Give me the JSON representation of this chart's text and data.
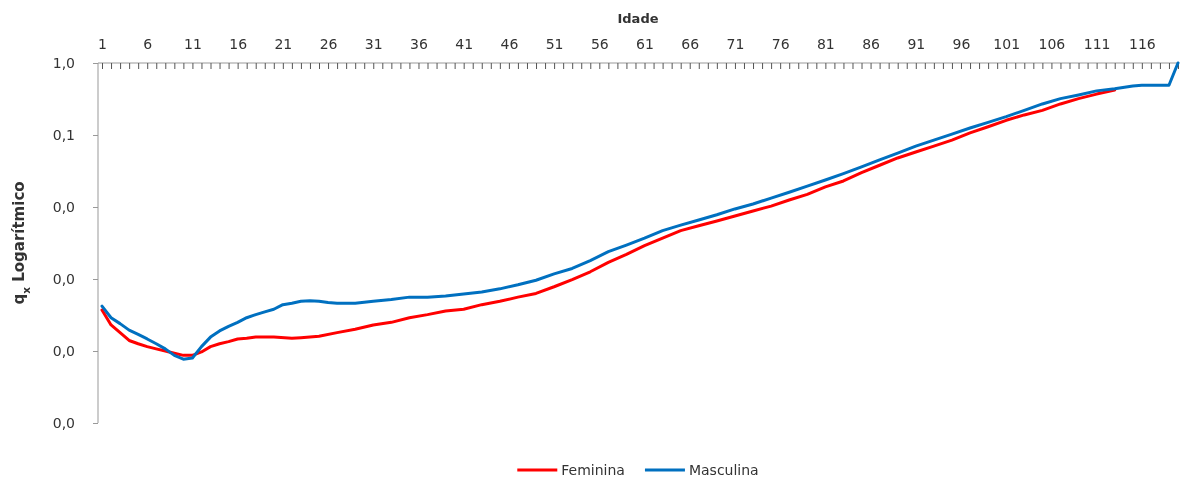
{
  "chart_data": {
    "type": "line",
    "xlabel": "Idade",
    "ylabel": "q$_{x}$ Logarítmico",
    "log": "y",
    "grid": false,
    "legend": "bottom",
    "marker": "none",
    "line_style": "solid",
    "xlim": [
      1,
      120
    ],
    "xticks": [
      1,
      {
        "value": 2,
        "label": null
      },
      {
        "value": 3,
        "label": null
      },
      {
        "value": 4,
        "label": null
      },
      {
        "value": 5,
        "label": null
      },
      6,
      {
        "value": 7,
        "label": null
      },
      {
        "value": 8,
        "label": null
      },
      {
        "value": 9,
        "label": null
      },
      {
        "value": 10,
        "label": null
      },
      11,
      {
        "value": 12,
        "label": null
      },
      {
        "value": 13,
        "label": null
      },
      {
        "value": 14,
        "label": null
      },
      {
        "value": 15,
        "label": null
      },
      16,
      {
        "value": 17,
        "label": null
      },
      {
        "value": 18,
        "label": null
      },
      {
        "value": 19,
        "label": null
      },
      {
        "value": 20,
        "label": null
      },
      21,
      {
        "value": 22,
        "label": null
      },
      {
        "value": 23,
        "label": null
      },
      {
        "value": 24,
        "label": null
      },
      {
        "value": 25,
        "label": null
      },
      26,
      {
        "value": 27,
        "label": null
      },
      {
        "value": 28,
        "label": null
      },
      {
        "value": 29,
        "label": null
      },
      {
        "value": 30,
        "label": null
      },
      31,
      {
        "value": 32,
        "label": null
      },
      {
        "value": 33,
        "label": null
      },
      {
        "value": 34,
        "label": null
      },
      {
        "value": 35,
        "label": null
      },
      36,
      {
        "value": 37,
        "label": null
      },
      {
        "value": 38,
        "label": null
      },
      {
        "value": 39,
        "label": null
      },
      {
        "value": 40,
        "label": null
      },
      41,
      {
        "value": 42,
        "label": null
      },
      {
        "value": 43,
        "label": null
      },
      {
        "value": 44,
        "label": null
      },
      {
        "value": 45,
        "label": null
      },
      46,
      {
        "value": 47,
        "label": null
      },
      {
        "value": 48,
        "label": null
      },
      {
        "value": 49,
        "label": null
      },
      {
        "value": 50,
        "label": null
      },
      51,
      {
        "value": 52,
        "label": null
      },
      {
        "value": 53,
        "label": null
      },
      {
        "value": 54,
        "label": null
      },
      {
        "value": 55,
        "label": null
      },
      56,
      {
        "value": 57,
        "label": null
      },
      {
        "value": 58,
        "label": null
      },
      {
        "value": 59,
        "label": null
      },
      {
        "value": 60,
        "label": null
      },
      61,
      {
        "value": 62,
        "label": null
      },
      {
        "value": 63,
        "label": null
      },
      {
        "value": 64,
        "label": null
      },
      {
        "value": 65,
        "label": null
      },
      66,
      {
        "value": 67,
        "label": null
      },
      {
        "value": 68,
        "label": null
      },
      {
        "value": 69,
        "label": null
      },
      {
        "value": 70,
        "label": null
      },
      71,
      {
        "value": 72,
        "label": null
      },
      {
        "value": 73,
        "label": null
      },
      {
        "value": 74,
        "label": null
      },
      {
        "value": 75,
        "label": null
      },
      76,
      {
        "value": 77,
        "label": null
      },
      {
        "value": 78,
        "label": null
      },
      {
        "value": 79,
        "label": null
      },
      {
        "value": 80,
        "label": null
      },
      81,
      {
        "value": 82,
        "label": null
      },
      {
        "value": 83,
        "label": null
      },
      {
        "value": 84,
        "label": null
      },
      {
        "value": 85,
        "label": null
      },
      86,
      {
        "value": 87,
        "label": null
      },
      {
        "value": 88,
        "label": null
      },
      {
        "value": 89,
        "label": null
      },
      {
        "value": 90,
        "label": null
      },
      91,
      {
        "value": 92,
        "label": null
      },
      {
        "value": 93,
        "label": null
      },
      {
        "value": 94,
        "label": null
      },
      {
        "value": 95,
        "label": null
      },
      96,
      {
        "value": 97,
        "label": null
      },
      {
        "value": 98,
        "label": null
      },
      {
        "value": 99,
        "label": null
      },
      {
        "value": 100,
        "label": null
      },
      101,
      {
        "value": 102,
        "label": null
      },
      {
        "value": 103,
        "label": null
      },
      {
        "value": 104,
        "label": null
      },
      {
        "value": 105,
        "label": null
      },
      106,
      {
        "value": 107,
        "label": null
      },
      {
        "value": 108,
        "label": null
      },
      {
        "value": 109,
        "label": null
      },
      {
        "value": 110,
        "label": null
      },
      111,
      {
        "value": 112,
        "label": null
      },
      {
        "value": 113,
        "label": null
      },
      {
        "value": 114,
        "label": null
      },
      {
        "value": 115,
        "label": null
      },
      116,
      {
        "value": 117,
        "label": null
      },
      {
        "value": 118,
        "label": null
      },
      {
        "value": 119,
        "label": null
      },
      {
        "value": 120,
        "label": null
      }
    ],
    "ylim": [
      1e-05,
      1
    ],
    "yticks": [
      {
        "value": 1e-05,
        "label": "0,0"
      },
      {
        "value": 0.0001,
        "label": "0,0"
      },
      {
        "value": 0.001,
        "label": "0,0"
      },
      {
        "value": 0.01,
        "label": "0,0"
      },
      {
        "value": 0.1,
        "label": "0,1"
      },
      {
        "value": 1,
        "label": "1,0"
      }
    ],
    "series": [
      {
        "name": "Feminina",
        "color": "#ff0000",
        "x": [
          1,
          2,
          3,
          4,
          5,
          6,
          7,
          8,
          9,
          10,
          11,
          12,
          13,
          14,
          15,
          16,
          17,
          18,
          20,
          22,
          23,
          25,
          27,
          29,
          31,
          33,
          35,
          37,
          39,
          41,
          43,
          45,
          47,
          49,
          51,
          53,
          55,
          57,
          59,
          61,
          63,
          65,
          67,
          69,
          71,
          73,
          75,
          77,
          79,
          81,
          83,
          85,
          87,
          89,
          91,
          93,
          95,
          97,
          99,
          101,
          103,
          105,
          107,
          109,
          111,
          113
        ],
        "values": [
          0.00037,
          0.00023,
          0.00018,
          0.00014,
          0.000126,
          0.000115,
          0.000107,
          0.0001,
          9.3e-05,
          8.7e-05,
          8.7e-05,
          9.7e-05,
          0.000115,
          0.000126,
          0.000135,
          0.000147,
          0.00015,
          0.000156,
          0.000156,
          0.00015,
          0.000153,
          0.00016,
          0.00018,
          0.0002,
          0.00023,
          0.00025,
          0.00029,
          0.00032,
          0.00036,
          0.00038,
          0.00044,
          0.00049,
          0.00056,
          0.00063,
          0.00078,
          0.00098,
          0.00126,
          0.0017,
          0.0022,
          0.0029,
          0.0037,
          0.0047,
          0.0055,
          0.0064,
          0.0075,
          0.0088,
          0.0103,
          0.0125,
          0.015,
          0.019,
          0.023,
          0.03,
          0.038,
          0.048,
          0.058,
          0.07,
          0.085,
          0.107,
          0.13,
          0.16,
          0.19,
          0.22,
          0.27,
          0.32,
          0.37,
          0.42
        ]
      },
      {
        "name": "Masculina",
        "color": "#0070c0",
        "x": [
          1,
          2,
          3,
          4,
          5,
          6,
          7,
          8,
          9,
          10,
          11,
          12,
          13,
          14,
          15,
          16,
          17,
          18,
          19,
          20,
          21,
          22,
          23,
          24,
          25,
          26,
          27,
          29,
          31,
          33,
          35,
          37,
          39,
          41,
          43,
          45,
          47,
          49,
          51,
          53,
          55,
          57,
          59,
          61,
          63,
          65,
          67,
          69,
          71,
          73,
          75,
          77,
          79,
          81,
          83,
          85,
          87,
          89,
          91,
          93,
          95,
          97,
          99,
          101,
          103,
          105,
          107,
          109,
          111,
          113,
          115,
          116,
          119,
          120
        ],
        "values": [
          0.00042,
          0.00029,
          0.00024,
          0.000195,
          0.00017,
          0.000147,
          0.000126,
          0.000107,
          8.7e-05,
          7.7e-05,
          8e-05,
          0.000115,
          0.000156,
          0.00019,
          0.00022,
          0.00025,
          0.00029,
          0.00032,
          0.00035,
          0.00038,
          0.00044,
          0.00046,
          0.00049,
          0.0005,
          0.00049,
          0.00047,
          0.00046,
          0.00046,
          0.00049,
          0.00052,
          0.00056,
          0.00056,
          0.00058,
          0.00062,
          0.00066,
          0.00073,
          0.00083,
          0.00096,
          0.00118,
          0.0014,
          0.0018,
          0.0024,
          0.00296,
          0.0037,
          0.0047,
          0.0056,
          0.0066,
          0.0078,
          0.0094,
          0.011,
          0.0133,
          0.016,
          0.0195,
          0.0237,
          0.029,
          0.036,
          0.045,
          0.056,
          0.07,
          0.085,
          0.103,
          0.125,
          0.15,
          0.18,
          0.22,
          0.27,
          0.32,
          0.36,
          0.41,
          0.44,
          0.48,
          0.49,
          0.49,
          1
        ]
      }
    ]
  }
}
